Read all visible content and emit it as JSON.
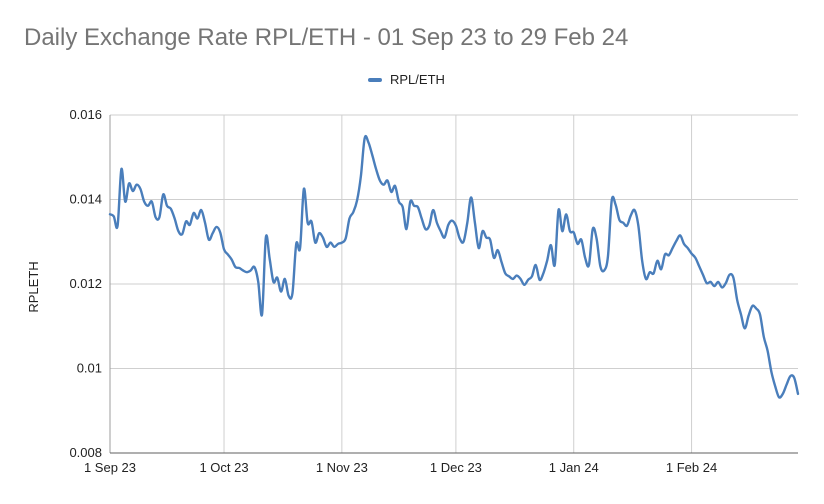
{
  "chart_data": {
    "type": "line",
    "title": "Daily Exchange Rate RPL/ETH - 01 Sep 23 to 29 Feb 24",
    "xlabel": "",
    "ylabel": "RPLETH",
    "ylim": [
      0.008,
      0.016
    ],
    "y_ticks": [
      0.008,
      0.01,
      0.012,
      0.014,
      0.016
    ],
    "y_tick_labels": [
      "0.008",
      "0.01",
      "0.012",
      "0.014",
      "0.016"
    ],
    "x_ticks": [
      {
        "label": "1 Sep 23",
        "day": 0
      },
      {
        "label": "1 Oct 23",
        "day": 30
      },
      {
        "label": "1 Nov 23",
        "day": 61
      },
      {
        "label": "1 Dec 23",
        "day": 91
      },
      {
        "label": "1 Jan 24",
        "day": 122
      },
      {
        "label": "1 Feb 24",
        "day": 153
      }
    ],
    "x_range_days": [
      0,
      181
    ],
    "grid": true,
    "legend_position": "top-center",
    "series": [
      {
        "name": "RPL/ETH",
        "color": "#4a7ebb",
        "points": [
          [
            0,
            0.01365
          ],
          [
            1,
            0.0136
          ],
          [
            2,
            0.01338
          ],
          [
            3,
            0.01472
          ],
          [
            4,
            0.01395
          ],
          [
            5,
            0.01438
          ],
          [
            6,
            0.0142
          ],
          [
            7,
            0.01435
          ],
          [
            8,
            0.01425
          ],
          [
            9,
            0.01395
          ],
          [
            10,
            0.01385
          ],
          [
            11,
            0.01395
          ],
          [
            12,
            0.01358
          ],
          [
            13,
            0.01358
          ],
          [
            14,
            0.01412
          ],
          [
            15,
            0.01385
          ],
          [
            16,
            0.01378
          ],
          [
            17,
            0.01355
          ],
          [
            18,
            0.01325
          ],
          [
            19,
            0.01318
          ],
          [
            20,
            0.01348
          ],
          [
            21,
            0.0134
          ],
          [
            22,
            0.01368
          ],
          [
            23,
            0.01355
          ],
          [
            24,
            0.01375
          ],
          [
            25,
            0.01345
          ],
          [
            26,
            0.01305
          ],
          [
            27,
            0.0132
          ],
          [
            28,
            0.01335
          ],
          [
            29,
            0.01322
          ],
          [
            30,
            0.01282
          ],
          [
            31,
            0.0127
          ],
          [
            32,
            0.01258
          ],
          [
            33,
            0.0124
          ],
          [
            34,
            0.01238
          ],
          [
            35,
            0.01232
          ],
          [
            36,
            0.01228
          ],
          [
            37,
            0.01232
          ],
          [
            38,
            0.0124
          ],
          [
            39,
            0.01205
          ],
          [
            40,
            0.01128
          ],
          [
            41,
            0.0131
          ],
          [
            42,
            0.0126
          ],
          [
            43,
            0.01205
          ],
          [
            44,
            0.01215
          ],
          [
            45,
            0.01182
          ],
          [
            46,
            0.01212
          ],
          [
            47,
            0.01172
          ],
          [
            48,
            0.01178
          ],
          [
            49,
            0.01295
          ],
          [
            50,
            0.01285
          ],
          [
            51,
            0.01425
          ],
          [
            52,
            0.01345
          ],
          [
            53,
            0.01348
          ],
          [
            54,
            0.01298
          ],
          [
            55,
            0.0132
          ],
          [
            56,
            0.0131
          ],
          [
            57,
            0.01288
          ],
          [
            58,
            0.01298
          ],
          [
            59,
            0.01288
          ],
          [
            60,
            0.01295
          ],
          [
            61,
            0.01298
          ],
          [
            62,
            0.01308
          ],
          [
            63,
            0.01355
          ],
          [
            64,
            0.0137
          ],
          [
            65,
            0.01398
          ],
          [
            66,
            0.01455
          ],
          [
            67,
            0.01545
          ],
          [
            68,
            0.01535
          ],
          [
            69,
            0.01505
          ],
          [
            70,
            0.01472
          ],
          [
            71,
            0.01445
          ],
          [
            72,
            0.01435
          ],
          [
            73,
            0.01445
          ],
          [
            74,
            0.01418
          ],
          [
            75,
            0.01432
          ],
          [
            76,
            0.01395
          ],
          [
            77,
            0.01382
          ],
          [
            78,
            0.0133
          ],
          [
            79,
            0.01395
          ],
          [
            80,
            0.01385
          ],
          [
            81,
            0.01382
          ],
          [
            82,
            0.01355
          ],
          [
            83,
            0.0133
          ],
          [
            84,
            0.01338
          ],
          [
            85,
            0.01375
          ],
          [
            86,
            0.01345
          ],
          [
            87,
            0.01325
          ],
          [
            88,
            0.0131
          ],
          [
            89,
            0.0134
          ],
          [
            90,
            0.0135
          ],
          [
            91,
            0.01338
          ],
          [
            92,
            0.01308
          ],
          [
            93,
            0.013
          ],
          [
            94,
            0.01345
          ],
          [
            95,
            0.01405
          ],
          [
            96,
            0.01345
          ],
          [
            97,
            0.01285
          ],
          [
            98,
            0.01325
          ],
          [
            99,
            0.0131
          ],
          [
            100,
            0.01305
          ],
          [
            101,
            0.01262
          ],
          [
            102,
            0.0128
          ],
          [
            103,
            0.01252
          ],
          [
            104,
            0.01225
          ],
          [
            105,
            0.01218
          ],
          [
            106,
            0.01212
          ],
          [
            107,
            0.0122
          ],
          [
            108,
            0.01212
          ],
          [
            109,
            0.01198
          ],
          [
            110,
            0.0121
          ],
          [
            111,
            0.01218
          ],
          [
            112,
            0.01245
          ],
          [
            113,
            0.0121
          ],
          [
            114,
            0.01225
          ],
          [
            115,
            0.01255
          ],
          [
            116,
            0.01292
          ],
          [
            117,
            0.01245
          ],
          [
            118,
            0.01375
          ],
          [
            119,
            0.01325
          ],
          [
            120,
            0.01365
          ],
          [
            121,
            0.01325
          ],
          [
            122,
            0.01322
          ],
          [
            123,
            0.01295
          ],
          [
            124,
            0.01305
          ],
          [
            125,
            0.01262
          ],
          [
            126,
            0.01245
          ],
          [
            127,
            0.0133
          ],
          [
            128,
            0.01308
          ],
          [
            129,
            0.01242
          ],
          [
            130,
            0.01232
          ],
          [
            131,
            0.01265
          ],
          [
            132,
            0.01398
          ],
          [
            133,
            0.01388
          ],
          [
            134,
            0.01352
          ],
          [
            135,
            0.01345
          ],
          [
            136,
            0.01338
          ],
          [
            137,
            0.01362
          ],
          [
            138,
            0.01375
          ],
          [
            139,
            0.01338
          ],
          [
            140,
            0.01255
          ],
          [
            141,
            0.01212
          ],
          [
            142,
            0.01228
          ],
          [
            143,
            0.01225
          ],
          [
            144,
            0.01255
          ],
          [
            145,
            0.01235
          ],
          [
            146,
            0.0127
          ],
          [
            147,
            0.01268
          ],
          [
            148,
            0.01285
          ],
          [
            149,
            0.01302
          ],
          [
            150,
            0.01315
          ],
          [
            151,
            0.01295
          ],
          [
            152,
            0.01285
          ],
          [
            153,
            0.01272
          ],
          [
            154,
            0.01262
          ],
          [
            155,
            0.01242
          ],
          [
            156,
            0.01222
          ],
          [
            157,
            0.01202
          ],
          [
            158,
            0.01205
          ],
          [
            159,
            0.01195
          ],
          [
            160,
            0.01205
          ],
          [
            161,
            0.01192
          ],
          [
            162,
            0.01202
          ],
          [
            163,
            0.01222
          ],
          [
            164,
            0.01215
          ],
          [
            165,
            0.01162
          ],
          [
            166,
            0.01128
          ],
          [
            167,
            0.01095
          ],
          [
            168,
            0.01125
          ],
          [
            169,
            0.01148
          ],
          [
            170,
            0.01142
          ],
          [
            171,
            0.01128
          ],
          [
            172,
            0.01075
          ],
          [
            173,
            0.01042
          ],
          [
            174,
            0.00992
          ],
          [
            175,
            0.00958
          ],
          [
            176,
            0.00932
          ],
          [
            177,
            0.0094
          ],
          [
            178,
            0.00962
          ],
          [
            179,
            0.00982
          ],
          [
            180,
            0.00978
          ],
          [
            181,
            0.0094
          ]
        ]
      }
    ]
  }
}
